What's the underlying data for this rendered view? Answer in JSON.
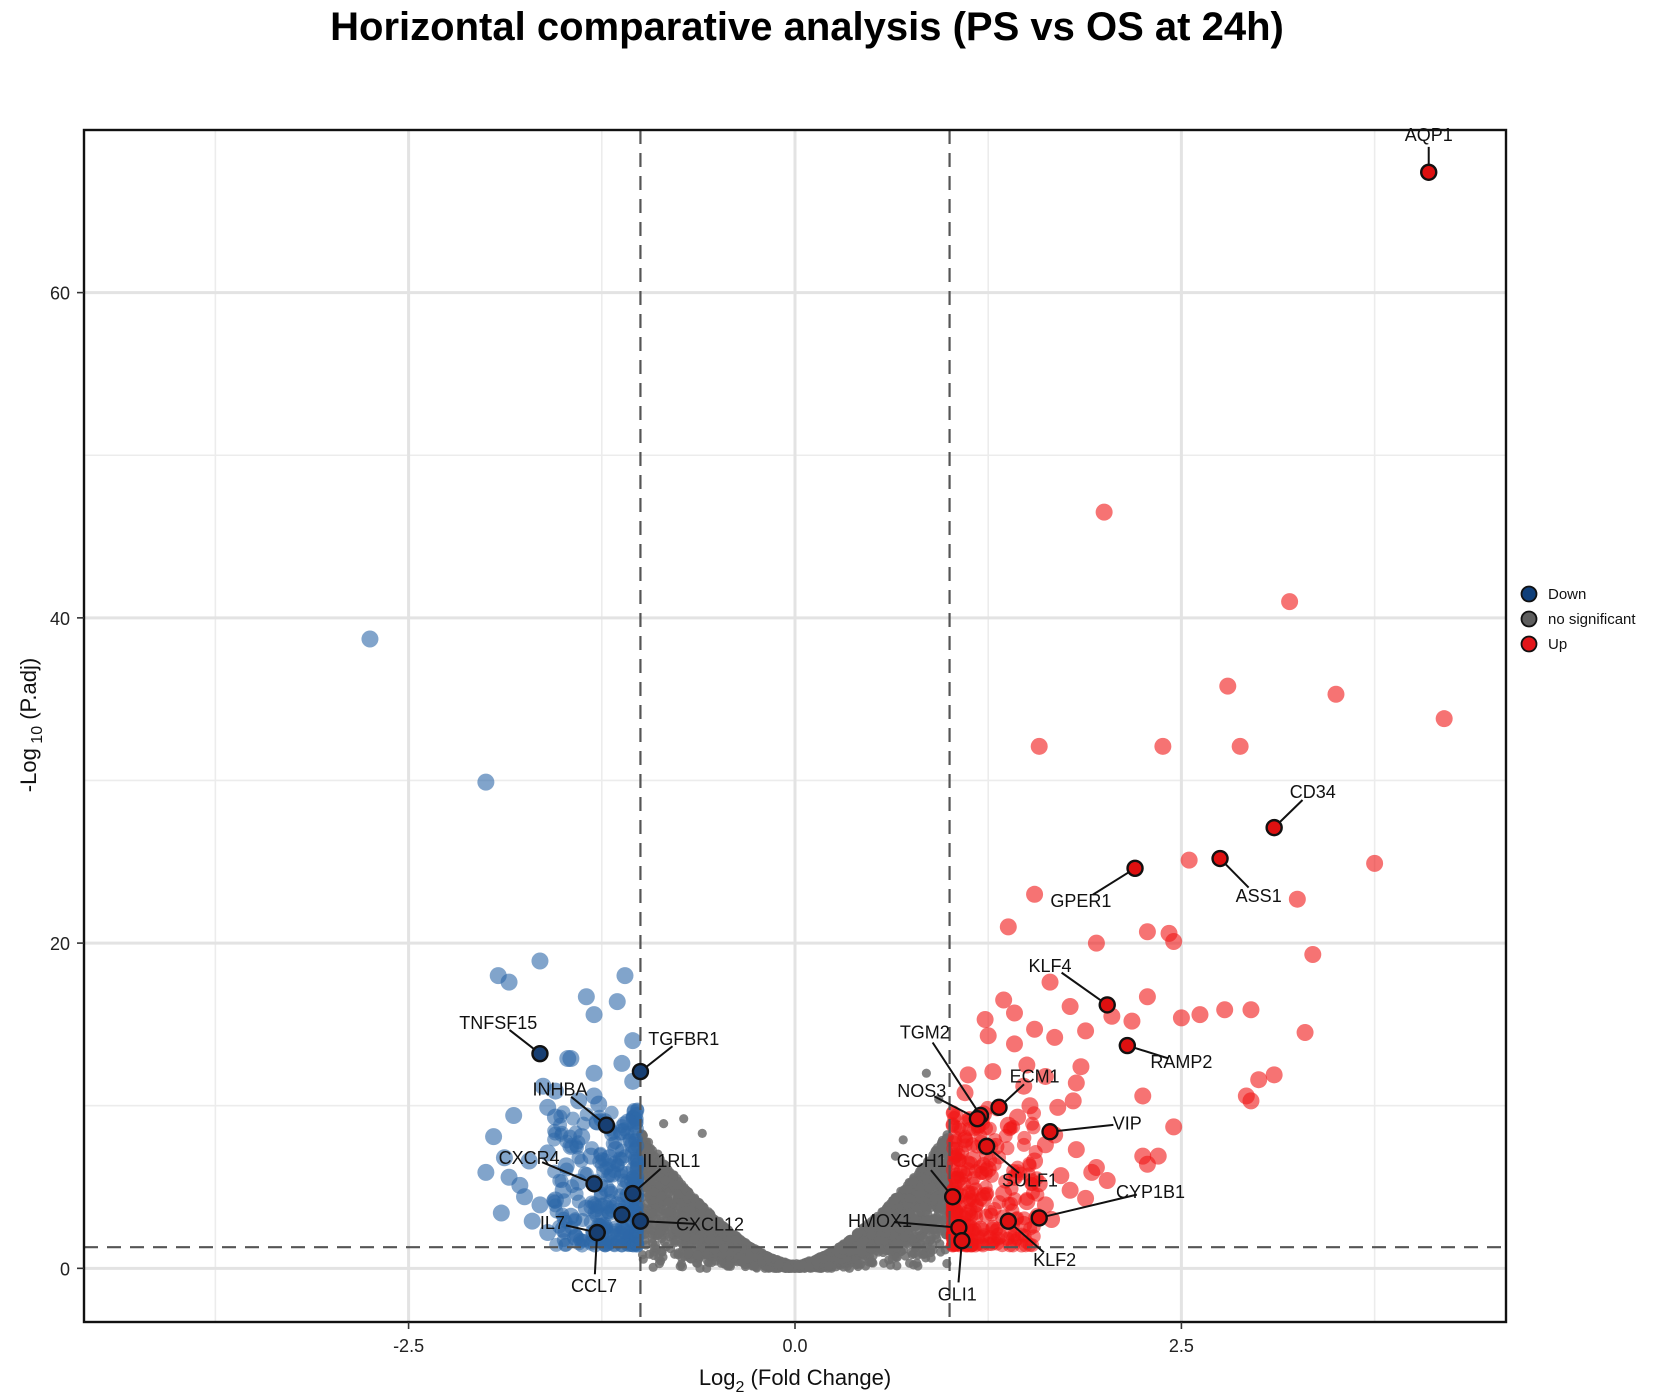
{
  "chart_data": {
    "type": "scatter",
    "title": "Horizontal comparative analysis (PS vs OS at 24h)",
    "xlabel_main": "Log",
    "xlabel_sub": "2",
    "xlabel_rest": " (Fold Change)",
    "ylabel_main": "-Log",
    "ylabel_sub": " 10",
    "ylabel_rest": " (P.adj)",
    "xlim": [
      -4.6,
      4.6
    ],
    "ylim": [
      -3.3,
      70
    ],
    "x_ticks": [
      -2.5,
      0,
      2.5
    ],
    "x_tick_labels": [
      "-2.5",
      "0.0",
      "2.5"
    ],
    "y_ticks": [
      0,
      20,
      40,
      60
    ],
    "y_tick_labels": [
      "0",
      "20",
      "40",
      "60"
    ],
    "fc_threshold": 1,
    "padj_line": 1.3,
    "grid": true,
    "legend": [
      {
        "key": "down",
        "label": "Down",
        "color": "#0f3f7a"
      },
      {
        "key": "ns",
        "label": "no significant",
        "color": "#5e5e5e"
      },
      {
        "key": "up",
        "label": "Up",
        "color": "#e3161a"
      }
    ],
    "colors": {
      "down": "#2d67a8",
      "ns": "#6d6d6d",
      "up": "#f01616",
      "highlight_down": "#173f73",
      "highlight_up": "#de1010"
    },
    "series": [
      {
        "name": "Down",
        "points": [
          [
            -2.75,
            38.7
          ],
          [
            -2.0,
            29.9
          ],
          [
            -1.65,
            18.9
          ],
          [
            -1.92,
            18.0
          ],
          [
            -1.85,
            17.6
          ],
          [
            -1.1,
            18.0
          ],
          [
            -1.35,
            16.7
          ],
          [
            -1.15,
            16.4
          ],
          [
            -1.3,
            15.6
          ],
          [
            -1.05,
            14.0
          ],
          [
            -1.45,
            12.9
          ],
          [
            -1.47,
            12.9
          ],
          [
            -1.12,
            12.6
          ],
          [
            -1.3,
            12.0
          ],
          [
            -1.05,
            11.5
          ],
          [
            -1.63,
            11.2
          ],
          [
            -1.55,
            10.9
          ],
          [
            -1.3,
            10.6
          ],
          [
            -1.4,
            10.3
          ],
          [
            -1.6,
            9.9
          ],
          [
            -1.82,
            9.4
          ],
          [
            -1.55,
            9.3
          ],
          [
            -1.28,
            9.0
          ],
          [
            -1.08,
            9.0
          ],
          [
            -1.95,
            8.1
          ],
          [
            -1.45,
            7.5
          ],
          [
            -1.6,
            7.1
          ],
          [
            -1.32,
            6.9
          ],
          [
            -1.88,
            6.8
          ],
          [
            -1.72,
            6.6
          ],
          [
            -1.48,
            6.3
          ],
          [
            -2.0,
            5.9
          ],
          [
            -1.85,
            5.6
          ],
          [
            -1.4,
            5.3
          ],
          [
            -1.18,
            5.8
          ],
          [
            -1.75,
            4.4
          ],
          [
            -1.55,
            4.2
          ],
          [
            -1.65,
            3.9
          ],
          [
            -1.35,
            3.7
          ],
          [
            -1.9,
            3.4
          ],
          [
            -1.45,
            3.2
          ],
          [
            -1.7,
            2.9
          ],
          [
            -1.25,
            2.6
          ],
          [
            -1.15,
            3.9
          ],
          [
            -1.08,
            4.5
          ],
          [
            -1.5,
            2.4
          ],
          [
            -1.3,
            2.1
          ],
          [
            -1.6,
            2.2
          ],
          [
            -1.2,
            6.8
          ],
          [
            -1.05,
            7.6
          ],
          [
            -1.38,
            8.1
          ],
          [
            -1.12,
            8.4
          ],
          [
            -1.5,
            4.8
          ],
          [
            -1.78,
            5.1
          ],
          [
            -1.22,
            4.9
          ],
          [
            -1.1,
            2.3
          ],
          [
            -1.42,
            1.9
          ],
          [
            -1.02,
            3.1
          ],
          [
            -1.27,
            10.1
          ],
          [
            -1.16,
            7.3
          ]
        ]
      },
      {
        "name": "Up",
        "points": [
          [
            4.1,
            67.4
          ],
          [
            2.0,
            46.5
          ],
          [
            3.2,
            41.0
          ],
          [
            2.8,
            35.8
          ],
          [
            3.5,
            35.3
          ],
          [
            4.2,
            33.8
          ],
          [
            1.58,
            32.1
          ],
          [
            2.38,
            32.1
          ],
          [
            2.88,
            32.1
          ],
          [
            3.1,
            27.1
          ],
          [
            2.75,
            25.2
          ],
          [
            2.2,
            24.6
          ],
          [
            3.75,
            24.9
          ],
          [
            2.55,
            25.1
          ],
          [
            1.55,
            23.0
          ],
          [
            3.25,
            22.7
          ],
          [
            2.28,
            20.7
          ],
          [
            2.42,
            20.6
          ],
          [
            1.38,
            21.0
          ],
          [
            1.95,
            20.0
          ],
          [
            2.45,
            20.1
          ],
          [
            3.35,
            19.3
          ],
          [
            1.65,
            17.6
          ],
          [
            2.02,
            16.2
          ],
          [
            2.28,
            16.7
          ],
          [
            1.35,
            16.5
          ],
          [
            1.78,
            16.1
          ],
          [
            2.78,
            15.9
          ],
          [
            2.95,
            15.9
          ],
          [
            2.62,
            15.6
          ],
          [
            2.05,
            15.5
          ],
          [
            1.23,
            15.3
          ],
          [
            2.18,
            15.2
          ],
          [
            2.5,
            15.4
          ],
          [
            1.42,
            15.7
          ],
          [
            1.55,
            14.7
          ],
          [
            1.88,
            14.6
          ],
          [
            1.68,
            14.2
          ],
          [
            3.3,
            14.5
          ],
          [
            2.15,
            13.7
          ],
          [
            1.25,
            14.3
          ],
          [
            1.42,
            13.8
          ],
          [
            1.85,
            12.4
          ],
          [
            1.62,
            11.8
          ],
          [
            1.12,
            11.9
          ],
          [
            3.1,
            11.9
          ],
          [
            3.0,
            11.6
          ],
          [
            1.82,
            11.4
          ],
          [
            1.48,
            11.2
          ],
          [
            2.92,
            10.6
          ],
          [
            2.25,
            10.6
          ],
          [
            2.95,
            10.3
          ],
          [
            1.8,
            10.3
          ],
          [
            1.32,
            9.9
          ],
          [
            1.22,
            9.5
          ],
          [
            1.7,
            9.9
          ],
          [
            1.52,
            10.0
          ],
          [
            1.18,
            9.2
          ],
          [
            1.38,
            8.8
          ],
          [
            1.68,
            8.2
          ],
          [
            2.45,
            8.7
          ],
          [
            1.1,
            7.9
          ],
          [
            1.3,
            7.5
          ],
          [
            1.82,
            7.3
          ],
          [
            2.25,
            6.9
          ],
          [
            2.35,
            6.9
          ],
          [
            1.55,
            6.6
          ],
          [
            1.95,
            6.2
          ],
          [
            2.28,
            6.4
          ],
          [
            1.25,
            6.1
          ],
          [
            1.42,
            5.6
          ],
          [
            1.72,
            5.7
          ],
          [
            1.92,
            5.9
          ],
          [
            1.58,
            5.2
          ],
          [
            1.05,
            5.4
          ],
          [
            1.35,
            4.6
          ],
          [
            1.78,
            4.8
          ],
          [
            2.02,
            5.4
          ],
          [
            1.22,
            4.3
          ],
          [
            1.5,
            4.1
          ],
          [
            1.88,
            4.3
          ],
          [
            1.62,
            3.9
          ],
          [
            1.12,
            3.4
          ],
          [
            1.35,
            3.1
          ],
          [
            1.48,
            2.7
          ],
          [
            1.2,
            2.4
          ],
          [
            1.05,
            2.1
          ],
          [
            1.32,
            2.0
          ],
          [
            1.66,
            3.0
          ],
          [
            1.15,
            6.7
          ],
          [
            1.62,
            7.6
          ],
          [
            1.44,
            9.3
          ],
          [
            1.28,
            12.1
          ],
          [
            1.1,
            10.8
          ],
          [
            1.5,
            12.5
          ]
        ]
      }
    ],
    "highlighted": [
      {
        "gene": "AQP1",
        "x": 4.1,
        "y": 67.4,
        "group": "up",
        "lx": 4.1,
        "ly": 69.7
      },
      {
        "gene": "CD34",
        "x": 3.1,
        "y": 27.1,
        "group": "up",
        "lx": 3.35,
        "ly": 29.3
      },
      {
        "gene": "ASS1",
        "x": 2.75,
        "y": 25.2,
        "group": "up",
        "lx": 3.0,
        "ly": 22.9
      },
      {
        "gene": "GPER1",
        "x": 2.2,
        "y": 24.6,
        "group": "up",
        "lx": 1.85,
        "ly": 22.6
      },
      {
        "gene": "KLF4",
        "x": 2.02,
        "y": 16.2,
        "group": "up",
        "lx": 1.65,
        "ly": 18.6
      },
      {
        "gene": "RAMP2",
        "x": 2.15,
        "y": 13.7,
        "group": "up",
        "lx": 2.5,
        "ly": 12.7
      },
      {
        "gene": "TGM2",
        "x": 1.2,
        "y": 9.4,
        "group": "up",
        "lx": 0.84,
        "ly": 14.5
      },
      {
        "gene": "ECM1",
        "x": 1.32,
        "y": 9.9,
        "group": "up",
        "lx": 1.55,
        "ly": 11.8
      },
      {
        "gene": "NOS3",
        "x": 1.18,
        "y": 9.2,
        "group": "up",
        "lx": 0.82,
        "ly": 10.9
      },
      {
        "gene": "VIP",
        "x": 1.65,
        "y": 8.4,
        "group": "up",
        "lx": 2.15,
        "ly": 8.9
      },
      {
        "gene": "SULF1",
        "x": 1.24,
        "y": 7.5,
        "group": "up",
        "lx": 1.52,
        "ly": 5.4
      },
      {
        "gene": "GCH1",
        "x": 1.02,
        "y": 4.4,
        "group": "up",
        "lx": 0.82,
        "ly": 6.6
      },
      {
        "gene": "CYP1B1",
        "x": 1.58,
        "y": 3.1,
        "group": "up",
        "lx": 2.3,
        "ly": 4.7
      },
      {
        "gene": "HMOX1",
        "x": 1.06,
        "y": 2.5,
        "group": "up",
        "lx": 0.55,
        "ly": 2.9
      },
      {
        "gene": "KLF2",
        "x": 1.38,
        "y": 2.9,
        "group": "up",
        "lx": 1.68,
        "ly": 0.5
      },
      {
        "gene": "GLI1",
        "x": 1.08,
        "y": 1.7,
        "group": "up",
        "lx": 1.05,
        "ly": -1.6
      },
      {
        "gene": "TNFSF15",
        "x": -1.65,
        "y": 13.2,
        "group": "down",
        "lx": -1.92,
        "ly": 15.1
      },
      {
        "gene": "TGFBR1",
        "x": -1.0,
        "y": 12.1,
        "group": "down",
        "lx": -0.72,
        "ly": 14.1
      },
      {
        "gene": "INHBA",
        "x": -1.22,
        "y": 8.8,
        "group": "down",
        "lx": -1.52,
        "ly": 11.0
      },
      {
        "gene": "CXCR4",
        "x": -1.3,
        "y": 5.2,
        "group": "down",
        "lx": -1.72,
        "ly": 6.8
      },
      {
        "gene": "IL1RL1",
        "x": -1.05,
        "y": 4.6,
        "group": "down",
        "lx": -0.8,
        "ly": 6.6
      },
      {
        "gene": "IL7",
        "x": -1.28,
        "y": 2.2,
        "group": "down",
        "lx": -1.57,
        "ly": 2.8
      },
      {
        "gene": "CXCL12",
        "x": -1.0,
        "y": 2.9,
        "group": "down",
        "lx": -0.55,
        "ly": 2.7
      },
      {
        "gene": "CCL7",
        "x": -1.28,
        "y": 2.2,
        "group": "down",
        "lx": -1.3,
        "ly": -1.1
      },
      {
        "gene": "",
        "x": -1.12,
        "y": 3.3,
        "group": "down",
        "lx": null,
        "ly": null
      }
    ]
  }
}
